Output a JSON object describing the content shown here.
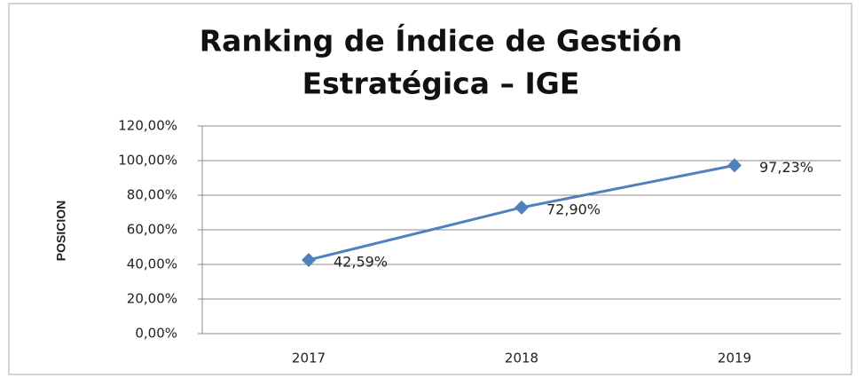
{
  "chart_data": {
    "type": "line",
    "title": [
      "Ranking de Índice de Gestión",
      "Estratégica – IGE"
    ],
    "y_label": "POSICION",
    "categories": [
      "2017",
      "2018",
      "2019"
    ],
    "series": [
      {
        "color": "#4f81bd",
        "values": [
          42.59,
          72.9,
          97.23
        ],
        "value_labels": [
          "42,59%",
          "72,90%",
          "97,23%"
        ]
      }
    ],
    "ylim": [
      0,
      120
    ],
    "yticks": [
      {
        "value": 0,
        "label": "0,00%"
      },
      {
        "value": 20,
        "label": "20,00%"
      },
      {
        "value": 40,
        "label": "40,00%"
      },
      {
        "value": 60,
        "label": "60,00%"
      },
      {
        "value": 80,
        "label": "80,00%"
      },
      {
        "value": 100,
        "label": "100,00%"
      },
      {
        "value": 120,
        "label": "120,00%"
      }
    ],
    "grid": true
  }
}
